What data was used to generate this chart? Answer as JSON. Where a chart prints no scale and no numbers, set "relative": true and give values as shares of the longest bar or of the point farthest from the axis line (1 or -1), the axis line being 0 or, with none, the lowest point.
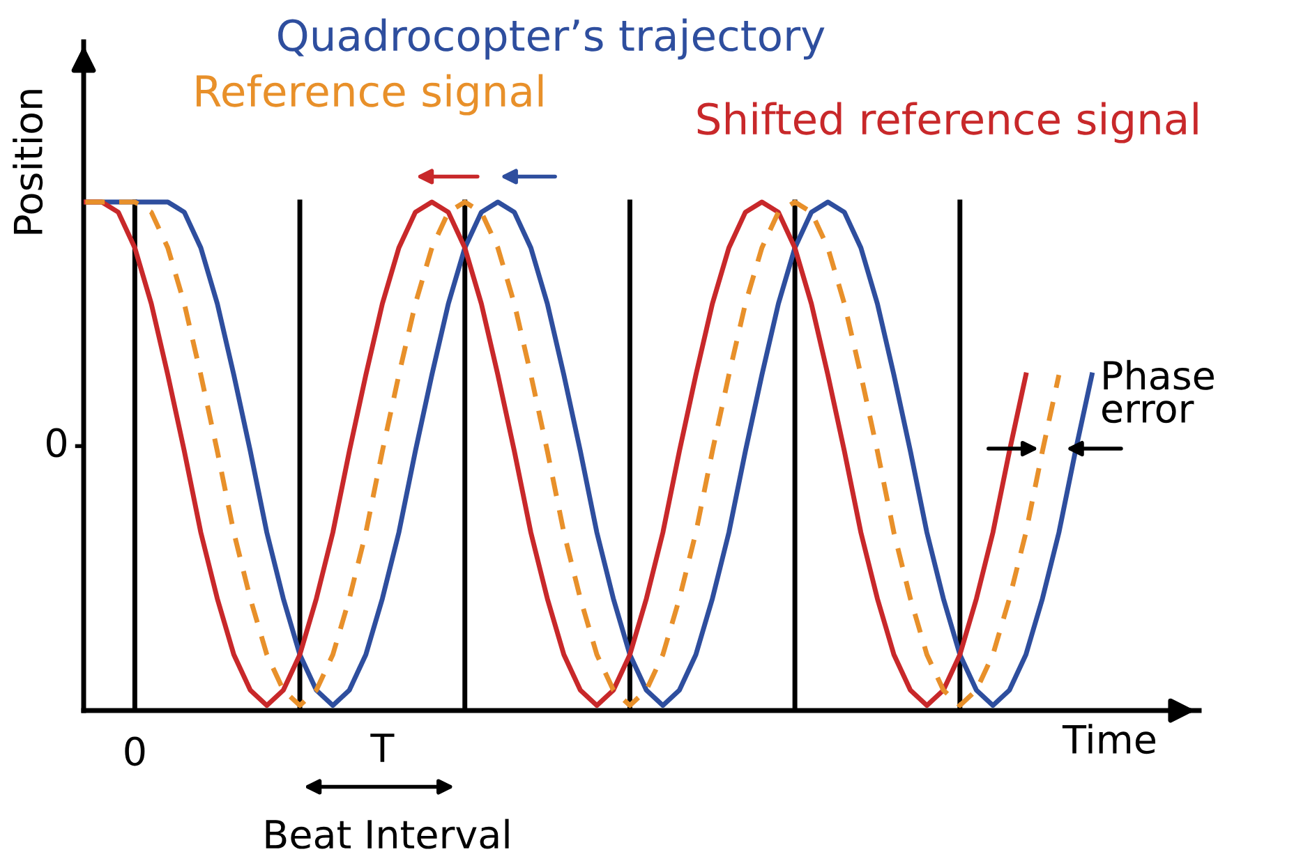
{
  "chart_data": {
    "type": "line",
    "relative": true,
    "xlabel": "Time",
    "ylabel": "Position",
    "line_style": "solid",
    "categories": [
      null,
      null,
      null,
      null,
      null,
      null,
      null,
      null,
      null,
      null,
      null,
      null,
      null,
      null,
      null,
      null,
      null,
      null,
      null,
      null,
      null,
      null,
      null,
      null,
      null,
      null,
      null,
      null,
      null,
      null,
      null,
      null,
      null,
      null,
      null,
      null,
      null,
      null,
      null,
      null,
      null,
      null,
      null,
      null,
      null,
      null,
      null,
      null,
      null,
      null,
      null,
      null,
      null,
      null,
      null,
      null,
      null,
      null,
      null,
      null,
      null,
      null
    ],
    "annotations": [
      "T",
      "Beat Interval",
      "Phase error",
      "0",
      "0"
    ],
    "grid": "x",
    "series": [
      {
        "name": "Quadrocopter’s trajectory",
        "color": "#2e4e9e",
        "values": [
          1,
          1,
          1,
          1,
          1,
          1,
          0.98,
          0.91,
          0.8,
          0.66,
          0.51,
          0.35,
          0.22,
          0.11,
          0.04,
          0.01,
          0.04,
          0.11,
          0.22,
          0.35,
          0.51,
          0.66,
          0.8,
          0.91,
          0.98,
          1,
          0.98,
          0.91,
          0.8,
          0.66,
          0.51,
          0.35,
          0.22,
          0.11,
          0.04,
          0.01,
          0.04,
          0.11,
          0.22,
          0.35,
          0.51,
          0.66,
          0.8,
          0.91,
          0.98,
          1,
          0.98,
          0.91,
          0.8,
          0.66,
          0.51,
          0.35,
          0.22,
          0.11,
          0.04,
          0.01,
          0.04,
          0.11,
          0.22,
          0.35,
          0.51,
          0.66
        ]
      },
      {
        "name": "Reference signal",
        "color": "#e8902a",
        "line_style": "dashed",
        "values": [
          1,
          1,
          1,
          1,
          0.98,
          0.91,
          0.8,
          0.66,
          0.51,
          0.35,
          0.22,
          0.11,
          0.04,
          0.01,
          0.04,
          0.11,
          0.22,
          0.35,
          0.51,
          0.66,
          0.8,
          0.91,
          0.98,
          1,
          0.98,
          0.91,
          0.8,
          0.66,
          0.51,
          0.35,
          0.22,
          0.11,
          0.04,
          0.01,
          0.04,
          0.11,
          0.22,
          0.35,
          0.51,
          0.66,
          0.8,
          0.91,
          0.98,
          1,
          0.98,
          0.91,
          0.8,
          0.66,
          0.51,
          0.35,
          0.22,
          0.11,
          0.04,
          0.01,
          0.04,
          0.11,
          0.22,
          0.35,
          0.51,
          0.66,
          null,
          null
        ]
      },
      {
        "name": "Shifted reference signal",
        "color": "#c8282a",
        "values": [
          1,
          1,
          0.98,
          0.91,
          0.8,
          0.66,
          0.51,
          0.35,
          0.22,
          0.11,
          0.04,
          0.01,
          0.04,
          0.11,
          0.22,
          0.35,
          0.51,
          0.66,
          0.8,
          0.91,
          0.98,
          1,
          0.98,
          0.91,
          0.8,
          0.66,
          0.51,
          0.35,
          0.22,
          0.11,
          0.04,
          0.01,
          0.04,
          0.11,
          0.22,
          0.35,
          0.51,
          0.66,
          0.8,
          0.91,
          0.98,
          1,
          0.98,
          0.91,
          0.8,
          0.66,
          0.51,
          0.35,
          0.22,
          0.11,
          0.04,
          0.01,
          0.04,
          0.11,
          0.22,
          0.35,
          0.51,
          0.66,
          null,
          null,
          null,
          null
        ]
      }
    ]
  }
}
